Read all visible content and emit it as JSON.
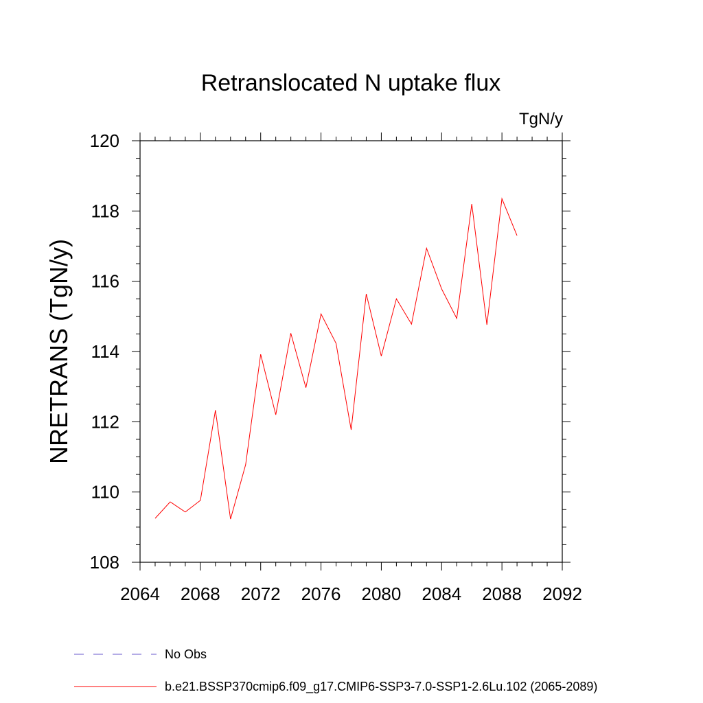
{
  "chart_data": {
    "type": "line",
    "title": "Retranslocated N uptake flux",
    "units": "TgN/y",
    "xlabel": "",
    "ylabel": "NRETRANS  (TgN/y)",
    "xlim": [
      2064,
      2092
    ],
    "ylim": [
      108,
      120
    ],
    "x_ticks": [
      2064,
      2068,
      2072,
      2076,
      2080,
      2084,
      2088,
      2092
    ],
    "y_ticks": [
      108,
      110,
      112,
      114,
      116,
      118,
      120
    ],
    "x_tick_labels": [
      "2064",
      "2068",
      "2072",
      "2076",
      "2080",
      "2084",
      "2088",
      "2092"
    ],
    "y_tick_labels": [
      "108",
      "110",
      "112",
      "114",
      "116",
      "118",
      "120"
    ],
    "grid": false,
    "legend_placement": "bottom",
    "series": [
      {
        "name": "b.e21.BSSP370cmip6.f09_g17.CMIP6-SSP3-7.0-SSP1-2.6Lu.102 (2065-2089)",
        "color": "#ff0000",
        "style": "solid",
        "x": [
          2065,
          2066,
          2067,
          2068,
          2069,
          2070,
          2071,
          2072,
          2073,
          2074,
          2075,
          2076,
          2077,
          2078,
          2079,
          2080,
          2081,
          2082,
          2083,
          2084,
          2085,
          2086,
          2087,
          2088,
          2089
        ],
        "values": [
          109.25,
          109.72,
          109.43,
          109.76,
          112.33,
          109.23,
          110.78,
          113.92,
          112.2,
          114.52,
          112.97,
          115.07,
          114.23,
          111.77,
          115.64,
          113.87,
          115.5,
          114.78,
          116.94,
          115.78,
          114.94,
          118.2,
          114.76,
          118.35,
          117.3
        ]
      }
    ],
    "legend": [
      {
        "label": "No Obs",
        "color": "#6a5acd",
        "style": "dashed"
      },
      {
        "label": "b.e21.BSSP370cmip6.f09_g17.CMIP6-SSP3-7.0-SSP1-2.6Lu.102 (2065-2089)",
        "color": "#ff0000",
        "style": "solid"
      }
    ]
  }
}
